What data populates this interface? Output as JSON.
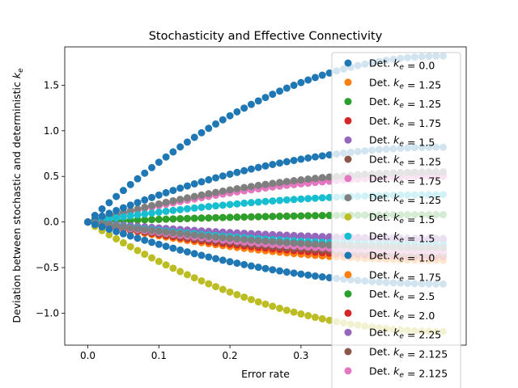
{
  "chart_data": {
    "type": "scatter",
    "title": "Stochasticity and Effective Connectivity",
    "xlabel": "Error rate",
    "ylabel": "Deviation between stochastic and deterministic k_e",
    "xlim": [
      -0.0325,
      0.5325
    ],
    "ylim": [
      -1.35,
      1.92
    ],
    "x_ticks": [
      0.0,
      0.1,
      0.2,
      0.3
    ],
    "x_tick_labels": [
      "0.0",
      "0.1",
      "0.2",
      "0.3"
    ],
    "y_ticks": [
      -1.0,
      -0.5,
      0.0,
      0.5,
      1.0,
      1.5
    ],
    "y_tick_labels": [
      "−1.0",
      "−0.5",
      "0.0",
      "0.5",
      "1.0",
      "1.5"
    ],
    "grid": false,
    "legend_position": "top-right",
    "x": {
      "start": 0.0,
      "stop": 0.5,
      "step": 0.01
    },
    "series": [
      {
        "name": "Det. k_e = 0.0",
        "color": "#1f77b4",
        "end_value": 1.82
      },
      {
        "name": "Det. k_e = 1.25",
        "color": "#ff7f0e",
        "end_value": 0.08
      },
      {
        "name": "Det. k_e = 1.25",
        "color": "#2ca02c",
        "end_value": 0.08
      },
      {
        "name": "Det. k_e = 1.75",
        "color": "#d62728",
        "end_value": 0.5
      },
      {
        "name": "Det. k_e = 1.5",
        "color": "#9467bd",
        "end_value": -0.18
      },
      {
        "name": "Det. k_e = 1.25",
        "color": "#8c564b",
        "end_value": 0.52
      },
      {
        "name": "Det. k_e = 1.75",
        "color": "#e377c2",
        "end_value": 0.5
      },
      {
        "name": "Det. k_e = 1.25",
        "color": "#7f7f7f",
        "end_value": 0.55
      },
      {
        "name": "Det. k_e = 1.5",
        "color": "#bcbd22",
        "end_value": -1.2
      },
      {
        "name": "Det. k_e = 1.5",
        "color": "#17becf",
        "end_value": 0.3
      },
      {
        "name": "Det. k_e = 1.0",
        "color": "#1f77b4",
        "end_value": 0.82
      },
      {
        "name": "Det. k_e = 1.75",
        "color": "#ff7f0e",
        "end_value": -0.42
      },
      {
        "name": "Det. k_e = 2.5",
        "color": "#2ca02c",
        "end_value": -0.3
      },
      {
        "name": "Det. k_e = 2.0",
        "color": "#d62728",
        "end_value": -0.38
      },
      {
        "name": "Det. k_e = 2.25",
        "color": "#9467bd",
        "end_value": -0.2
      },
      {
        "name": "Det. k_e = 2.125",
        "color": "#8c564b",
        "end_value": -0.35
      },
      {
        "name": "Det. k_e = 2.125",
        "color": "#e377c2",
        "end_value": -0.32
      },
      {
        "name": "",
        "color": "#17becf",
        "end_value": -0.25
      },
      {
        "name": "",
        "color": "#7f7f7f",
        "end_value": -0.28
      },
      {
        "name": "",
        "color": "#1f77b4",
        "end_value": -0.68
      }
    ]
  }
}
